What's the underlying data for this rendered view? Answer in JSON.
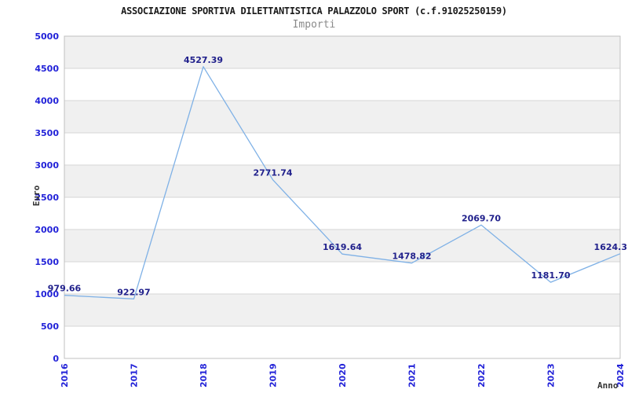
{
  "page": {
    "background": "#ffffff"
  },
  "chart_data": {
    "type": "line",
    "title": "ASSOCIAZIONE SPORTIVA DILETTANTISTICA PALAZZOLO SPORT (c.f.91025250159)",
    "subtitle": "Importi",
    "xlabel": "Anno",
    "ylabel": "Euro",
    "categories": [
      "2016",
      "2017",
      "2018",
      "2019",
      "2020",
      "2021",
      "2022",
      "2023",
      "2024"
    ],
    "values": [
      979.66,
      922.97,
      4527.39,
      2771.74,
      1619.64,
      1478.82,
      2069.7,
      1181.7,
      1624.3
    ],
    "point_labels": [
      "979.66",
      "922.97",
      "4527.39",
      "2771.74",
      "1619.64",
      "1478.82",
      "2069.70",
      "1181.70",
      "1624.3"
    ],
    "ylim": [
      0,
      5000
    ],
    "ytick_step": 500,
    "yticks": [
      "0",
      "500",
      "1000",
      "1500",
      "2000",
      "2500",
      "3000",
      "3500",
      "4000",
      "4500",
      "5000"
    ],
    "grid": "horizontal",
    "bands": "alternating-horizontal",
    "legend": "none",
    "markers": "none",
    "colors": {
      "line": "#7fb1e6",
      "point_label": "#21218c",
      "tick_label": "#2222d8",
      "axis_title": "#333333",
      "title": "#1a1a1a",
      "subtitle": "#8a8a8a",
      "band": "#f0f0f0",
      "band_alt": "#ffffff",
      "gridline": "#d6d6d6",
      "plot_border": "#c0c0c0",
      "background": "#ffffff"
    }
  }
}
